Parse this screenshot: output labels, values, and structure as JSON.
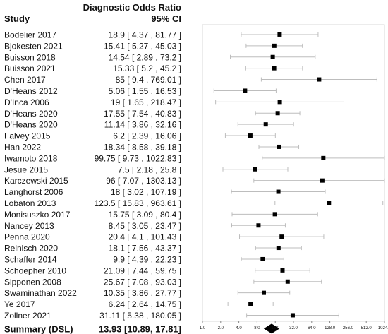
{
  "chart_data": {
    "type": "forest",
    "header": {
      "study": "Study",
      "metric": "Diagnostic Odds Ratio",
      "ci": "95% CI"
    },
    "x_scale": "log2",
    "xlim": [
      1.0,
      1024.0
    ],
    "x_ticks": [
      "1.0",
      "2.0",
      "4.0",
      "8.0",
      "16.0",
      "32.0",
      "64.0",
      "128.0",
      "256.0",
      "512.0",
      "1024.0"
    ],
    "studies": [
      {
        "name": "Bodelier 2017",
        "label": "18.9 [ 4.37 , 81.77 ]",
        "estimate": 18.9,
        "lower": 4.37,
        "upper": 81.77
      },
      {
        "name": "Bjokesten 2021",
        "label": "15.41 [ 5.27 , 45.03 ]",
        "estimate": 15.41,
        "lower": 5.27,
        "upper": 45.03
      },
      {
        "name": "Buisson 2018",
        "label": "14.54 [ 2.89 , 73.2 ]",
        "estimate": 14.54,
        "lower": 2.89,
        "upper": 73.2
      },
      {
        "name": "Buisson 2021",
        "label": "15.33 [ 5.2 , 45.2 ]",
        "estimate": 15.33,
        "lower": 5.2,
        "upper": 45.2
      },
      {
        "name": "Chen 2017",
        "label": "85 [ 9.4 , 769.01 ]",
        "estimate": 85,
        "lower": 9.4,
        "upper": 769.01
      },
      {
        "name": "D'Heans 2012",
        "label": "5.06 [ 1.55 , 16.53 ]",
        "estimate": 5.06,
        "lower": 1.55,
        "upper": 16.53
      },
      {
        "name": "D'Inca 2006",
        "label": "19 [ 1.65 , 218.47 ]",
        "estimate": 19,
        "lower": 1.65,
        "upper": 218.47
      },
      {
        "name": "D'Heans 2020",
        "label": "17.55 [ 7.54 , 40.83 ]",
        "estimate": 17.55,
        "lower": 7.54,
        "upper": 40.83
      },
      {
        "name": "D'Heans 2020",
        "label": "11.14 [ 3.86 , 32.16 ]",
        "estimate": 11.14,
        "lower": 3.86,
        "upper": 32.16
      },
      {
        "name": "Falvey 2015",
        "label": "6.2 [ 2.39 , 16.06 ]",
        "estimate": 6.2,
        "lower": 2.39,
        "upper": 16.06
      },
      {
        "name": "Han 2022",
        "label": "18.34 [ 8.58 , 39.18 ]",
        "estimate": 18.34,
        "lower": 8.58,
        "upper": 39.18
      },
      {
        "name": "Iwamoto 2018",
        "label": "99.75 [ 9.73 , 1022.83 ]",
        "estimate": 99.75,
        "lower": 9.73,
        "upper": 1022.83
      },
      {
        "name": "Jesue 2015",
        "label": "7.5 [ 2.18 , 25.8 ]",
        "estimate": 7.5,
        "lower": 2.18,
        "upper": 25.8
      },
      {
        "name": "Karczewski 2015",
        "label": "96 [ 7.07 , 1303.13 ]",
        "estimate": 96,
        "lower": 7.07,
        "upper": 1303.13
      },
      {
        "name": "Langhorst 2006",
        "label": "18 [ 3.02 , 107.19 ]",
        "estimate": 18,
        "lower": 3.02,
        "upper": 107.19
      },
      {
        "name": "Lobaton 2013",
        "label": "123.5 [ 15.83 , 963.61 ]",
        "estimate": 123.5,
        "lower": 15.83,
        "upper": 963.61
      },
      {
        "name": "Monisuszko 2017",
        "label": "15.75 [ 3.09 , 80.4 ]",
        "estimate": 15.75,
        "lower": 3.09,
        "upper": 80.4
      },
      {
        "name": "Nancey 2013",
        "label": "8.45 [ 3.05 , 23.47 ]",
        "estimate": 8.45,
        "lower": 3.05,
        "upper": 23.47
      },
      {
        "name": "Penna 2020",
        "label": "20.4 [ 4.1 , 101.43 ]",
        "estimate": 20.4,
        "lower": 4.1,
        "upper": 101.43
      },
      {
        "name": "Reinisch 2020",
        "label": "18.1 [ 7.56 , 43.37 ]",
        "estimate": 18.1,
        "lower": 7.56,
        "upper": 43.37
      },
      {
        "name": "Schaffer 2014",
        "label": "9.9 [ 4.39 , 22.23 ]",
        "estimate": 9.9,
        "lower": 4.39,
        "upper": 22.23
      },
      {
        "name": "Schoepher 2010",
        "label": "21.09 [ 7.44 , 59.75 ]",
        "estimate": 21.09,
        "lower": 7.44,
        "upper": 59.75
      },
      {
        "name": "Sipponen 2008",
        "label": "25.67 [ 7.08 , 93.03 ]",
        "estimate": 25.67,
        "lower": 7.08,
        "upper": 93.03
      },
      {
        "name": "Swaminathan 2022",
        "label": "10.35 [ 3.86 , 27.77 ]",
        "estimate": 10.35,
        "lower": 3.86,
        "upper": 27.77
      },
      {
        "name": "Ye 2017",
        "label": "6.24 [ 2.64 , 14.75 ]",
        "estimate": 6.24,
        "lower": 2.64,
        "upper": 14.75
      },
      {
        "name": "Zollner 2021",
        "label": "31.11 [ 5.38 , 180.05 ]",
        "estimate": 31.11,
        "lower": 5.38,
        "upper": 180.05
      }
    ],
    "summary": {
      "name": "Summary (DSL)",
      "label": "13.93 [10.89, 17.81]",
      "estimate": 13.93,
      "lower": 10.89,
      "upper": 17.81
    },
    "colors": {
      "marker": "#000000",
      "ci_line": "#bdbdbd",
      "frame": "#d9d9d9",
      "text": "#111111"
    }
  }
}
